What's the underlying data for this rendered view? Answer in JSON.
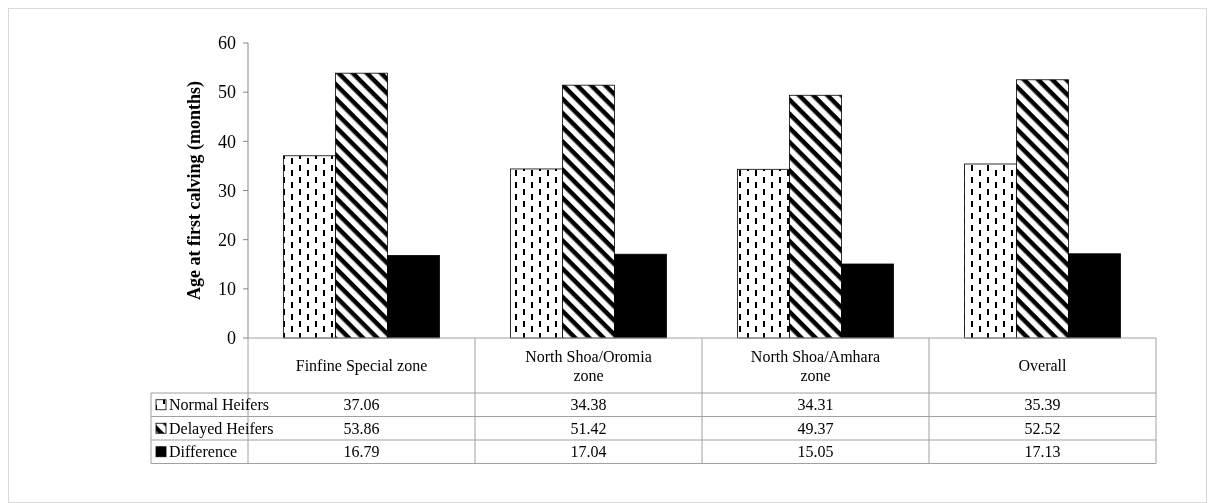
{
  "chart_data": {
    "type": "bar",
    "ylabel": "Age at first calving (months)",
    "categories": [
      "Finfine Special zone",
      "North Shoa/Oromia zone",
      "North Shoa/Amhara zone",
      "Overall"
    ],
    "series": [
      {
        "name": "Normal Heifers",
        "color": "#000000",
        "values": [
          37.06,
          34.38,
          34.31,
          35.39
        ]
      },
      {
        "name": "Delayed Heifers",
        "color": "#000000",
        "values": [
          53.86,
          51.42,
          49.37,
          52.52
        ]
      },
      {
        "name": "Difference",
        "color": "#000000",
        "values": [
          16.79,
          17.04,
          15.05,
          17.13
        ]
      }
    ],
    "ylim": [
      0,
      60
    ],
    "yticks": [
      0,
      10,
      20,
      30,
      40,
      50,
      60
    ],
    "data_labels": true,
    "legend": "bottom left",
    "grid": false
  }
}
